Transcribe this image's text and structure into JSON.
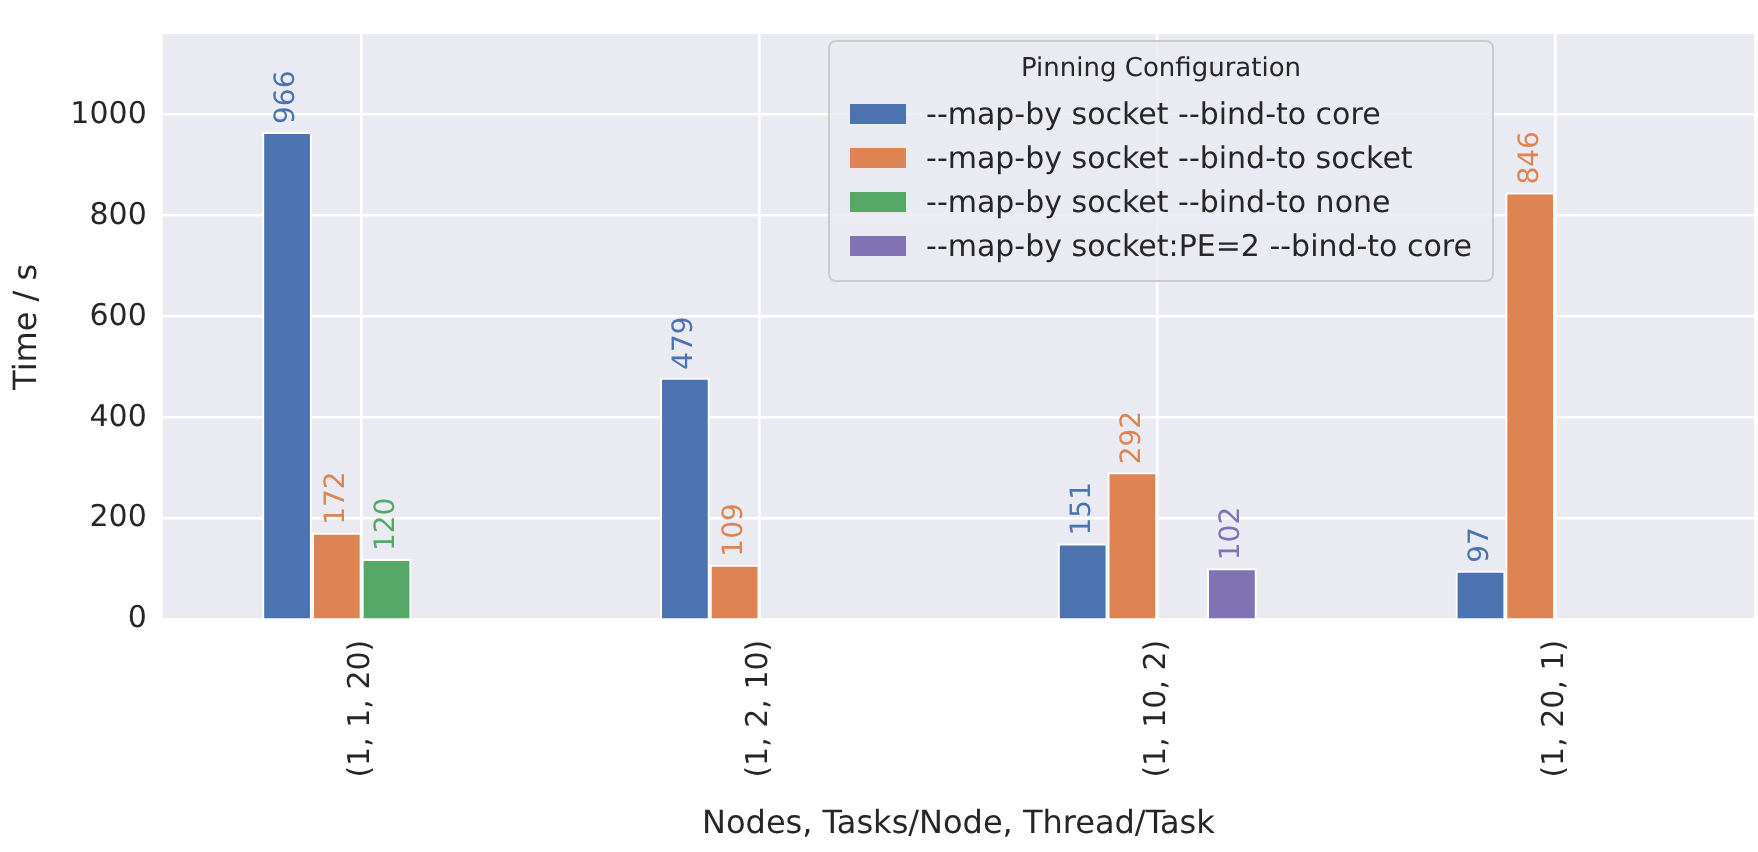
{
  "chart_data": {
    "type": "bar",
    "xlabel": "Nodes, Tasks/Node, Thread/Task",
    "ylabel": "Time / s",
    "legend_title": "Pinning Configuration",
    "categories": [
      "(1, 1, 20)",
      "(1, 2, 10)",
      "(1, 10, 2)",
      "(1, 20, 1)"
    ],
    "series": [
      {
        "name": "--map-by socket --bind-to core",
        "color": "#4c72b0",
        "values": [
          966,
          479,
          151,
          97
        ]
      },
      {
        "name": "--map-by socket --bind-to socket",
        "color": "#dd8452",
        "values": [
          172,
          109,
          292,
          846
        ]
      },
      {
        "name": "--map-by socket --bind-to none",
        "color": "#55a868",
        "values": [
          120,
          null,
          null,
          null
        ]
      },
      {
        "name": "--map-by socket:PE=2 --bind-to core",
        "color": "#8172b3",
        "values": [
          null,
          null,
          102,
          null
        ]
      }
    ],
    "ylim": [
      0,
      1160
    ],
    "yticks": [
      0,
      200,
      400,
      600,
      800,
      1000
    ],
    "grid": true,
    "legend": "top right",
    "data_labels": true
  }
}
